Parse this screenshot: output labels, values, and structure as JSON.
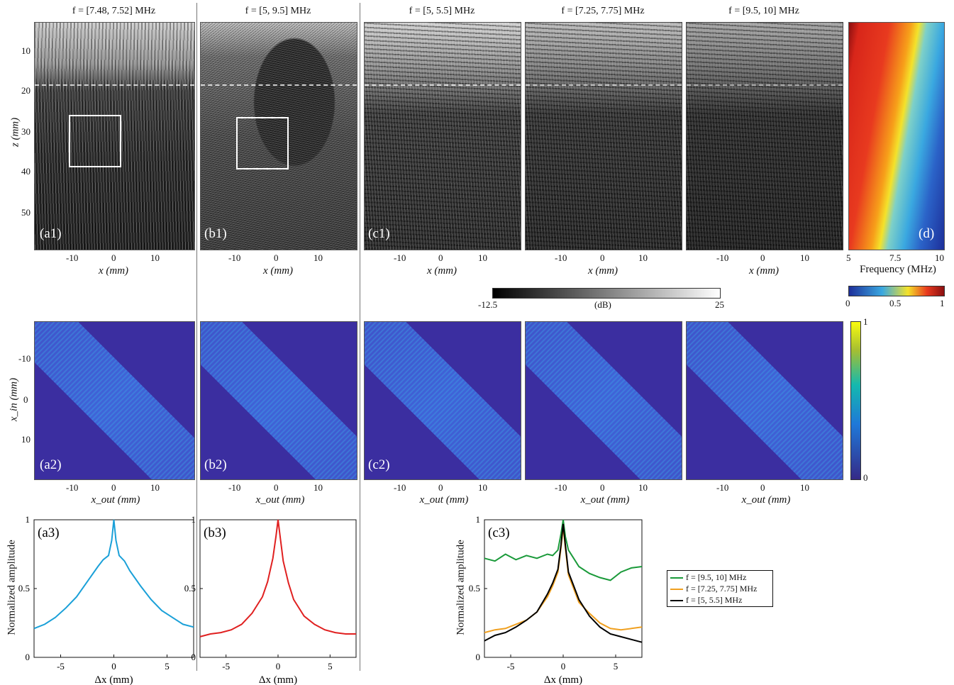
{
  "titles": {
    "a": "f = [7.48, 7.52] MHz",
    "b": "f = [5, 9.5] MHz",
    "c1": "f = [5, 5.5] MHz",
    "c2": "f = [7.25, 7.75] MHz",
    "c3": "f = [9.5, 10] MHz"
  },
  "row1": {
    "ylabel": "z (mm)",
    "yticks": [
      "10",
      "20",
      "30",
      "40",
      "50"
    ],
    "xlabel": "x (mm)",
    "xticks": [
      "-10",
      "0",
      "10"
    ],
    "labels": [
      "(a1)",
      "(b1)",
      "(c1)",
      "(d)"
    ]
  },
  "row2": {
    "ylabel": "x_in (mm)",
    "yticks": [
      "-10",
      "0",
      "10"
    ],
    "xlabel": "x_out (mm)",
    "xticks": [
      "-10",
      "0",
      "10"
    ],
    "labels": [
      "(a2)",
      "(b2)",
      "(c2)"
    ]
  },
  "row3": {
    "ylabel": "Normalized amplitude",
    "yticks": [
      "0",
      "0.5",
      "1"
    ],
    "xlabel": "Δx (mm)",
    "xticks": [
      "-5",
      "0",
      "5"
    ],
    "labels": [
      "(a3)",
      "(b3)",
      "(c3)"
    ]
  },
  "colorbars": {
    "db": {
      "min": "-12.5",
      "unit": "(dB)",
      "max": "25"
    },
    "freq": {
      "min": "0",
      "mid": "0.5",
      "max": "1"
    },
    "tm": {
      "max": "1",
      "min": "0"
    }
  },
  "freq_panel": {
    "xlabel": "Frequency (MHz)",
    "xticks": [
      "5",
      "7.5",
      "10"
    ]
  },
  "legend": [
    {
      "label": "f = [9.5, 10] MHz",
      "color": "#1a9a3a"
    },
    {
      "label": "f = [7.25, 7.75] MHz",
      "color": "#f0a020"
    },
    {
      "label": "f = [5, 5.5] MHz",
      "color": "#000000"
    }
  ],
  "chart_data": [
    {
      "type": "line",
      "panel": "(a3)",
      "xlabel": "Δx (mm)",
      "ylabel": "Normalized amplitude",
      "xlim": [
        -7.5,
        7.5
      ],
      "ylim": [
        0,
        1
      ],
      "series": [
        {
          "color": "#1aa0d8",
          "x": [
            -7.5,
            -6.5,
            -5.5,
            -4.5,
            -3.5,
            -2.5,
            -1.5,
            -1.0,
            -0.5,
            -0.2,
            0,
            0.2,
            0.5,
            1.0,
            1.5,
            2.5,
            3.5,
            4.5,
            5.5,
            6.5,
            7.5
          ],
          "y": [
            0.21,
            0.24,
            0.29,
            0.36,
            0.44,
            0.55,
            0.66,
            0.71,
            0.74,
            0.85,
            1.0,
            0.85,
            0.74,
            0.7,
            0.63,
            0.52,
            0.42,
            0.34,
            0.29,
            0.24,
            0.22
          ]
        }
      ]
    },
    {
      "type": "line",
      "panel": "(b3)",
      "xlabel": "Δx (mm)",
      "ylabel": "Normalized amplitude",
      "xlim": [
        -7.5,
        7.5
      ],
      "ylim": [
        0,
        1
      ],
      "series": [
        {
          "color": "#e02020",
          "x": [
            -7.5,
            -6.5,
            -5.5,
            -4.5,
            -3.5,
            -2.5,
            -1.5,
            -1.0,
            -0.5,
            -0.2,
            0,
            0.2,
            0.5,
            1.0,
            1.5,
            2.5,
            3.5,
            4.5,
            5.5,
            6.5,
            7.5
          ],
          "y": [
            0.15,
            0.17,
            0.18,
            0.2,
            0.24,
            0.32,
            0.44,
            0.55,
            0.72,
            0.88,
            1.0,
            0.88,
            0.7,
            0.54,
            0.42,
            0.3,
            0.24,
            0.2,
            0.18,
            0.17,
            0.17
          ]
        }
      ]
    },
    {
      "type": "line",
      "panel": "(c3)",
      "xlabel": "Δx (mm)",
      "ylabel": "Normalized amplitude",
      "xlim": [
        -7.5,
        7.5
      ],
      "ylim": [
        0,
        1
      ],
      "series": [
        {
          "name": "f = [9.5, 10] MHz",
          "color": "#1a9a3a",
          "x": [
            -7.5,
            -6.5,
            -5.5,
            -4.5,
            -3.5,
            -2.5,
            -1.5,
            -1.0,
            -0.5,
            -0.2,
            0,
            0.2,
            0.5,
            1.0,
            1.5,
            2.5,
            3.5,
            4.5,
            5.5,
            6.5,
            7.5
          ],
          "y": [
            0.72,
            0.7,
            0.75,
            0.71,
            0.74,
            0.72,
            0.75,
            0.74,
            0.78,
            0.9,
            1.0,
            0.88,
            0.78,
            0.72,
            0.66,
            0.61,
            0.58,
            0.56,
            0.62,
            0.65,
            0.66
          ]
        },
        {
          "name": "f = [7.25, 7.75] MHz",
          "color": "#f0a020",
          "x": [
            -7.5,
            -6.5,
            -5.5,
            -4.5,
            -3.5,
            -2.5,
            -1.5,
            -1.0,
            -0.5,
            -0.2,
            0,
            0.2,
            0.5,
            1.0,
            1.5,
            2.5,
            3.5,
            4.5,
            5.5,
            6.5,
            7.5
          ],
          "y": [
            0.18,
            0.2,
            0.21,
            0.24,
            0.27,
            0.33,
            0.44,
            0.52,
            0.62,
            0.8,
            0.95,
            0.8,
            0.6,
            0.5,
            0.4,
            0.32,
            0.25,
            0.21,
            0.2,
            0.21,
            0.22
          ]
        },
        {
          "name": "f = [5, 5.5] MHz",
          "color": "#000000",
          "x": [
            -7.5,
            -6.5,
            -5.5,
            -4.5,
            -3.5,
            -2.5,
            -1.5,
            -1.0,
            -0.5,
            -0.2,
            0,
            0.2,
            0.5,
            1.0,
            1.5,
            2.5,
            3.5,
            4.5,
            5.5,
            6.5,
            7.5
          ],
          "y": [
            0.12,
            0.16,
            0.18,
            0.22,
            0.27,
            0.33,
            0.46,
            0.54,
            0.64,
            0.82,
            0.97,
            0.82,
            0.62,
            0.52,
            0.42,
            0.3,
            0.22,
            0.17,
            0.15,
            0.13,
            0.11
          ]
        }
      ]
    }
  ]
}
